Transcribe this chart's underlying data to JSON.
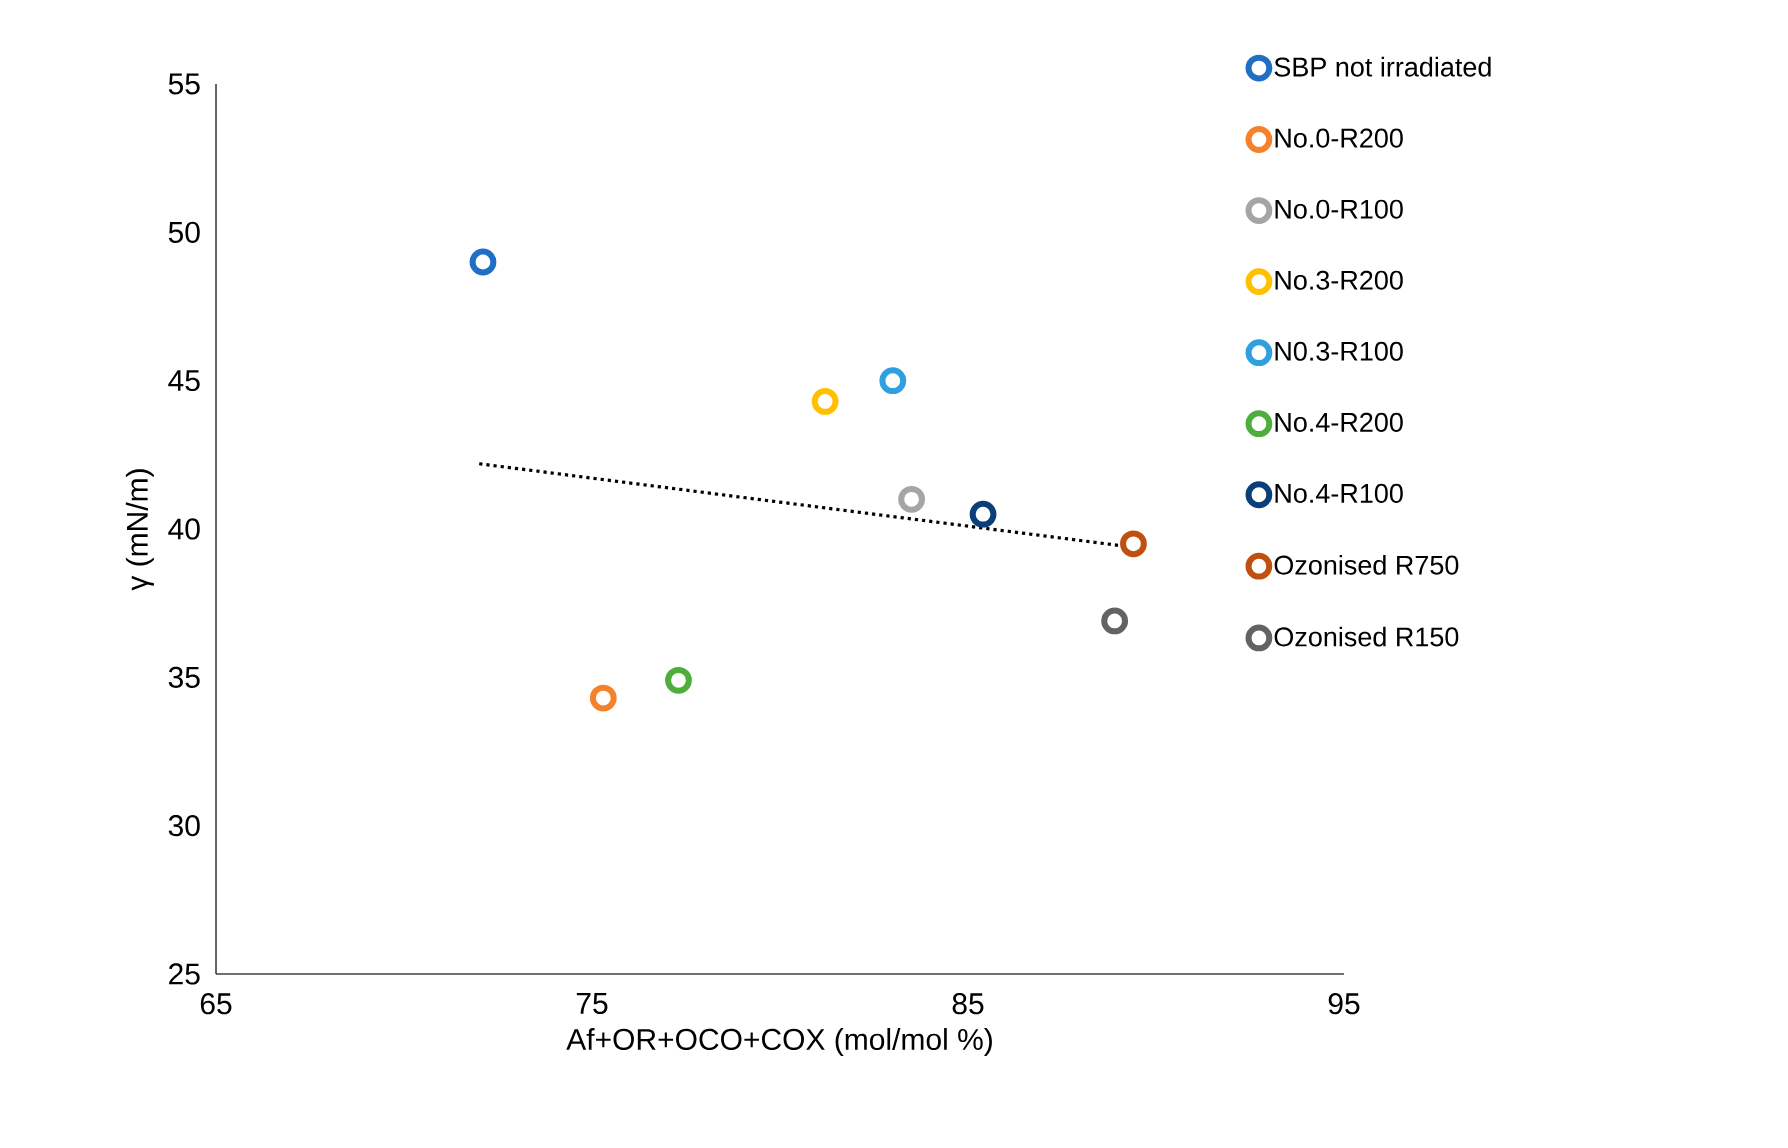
{
  "chart_data": {
    "type": "scatter",
    "xlabel": "Af+OR+OCO+COX  (mol/mol %)",
    "ylabel": "γ (mN/m)",
    "xlim": [
      65,
      95
    ],
    "ylim": [
      25,
      55
    ],
    "xticks": [
      65,
      75,
      85,
      95
    ],
    "yticks": [
      25,
      30,
      35,
      40,
      45,
      50,
      55
    ],
    "marker": "circle",
    "legend": "right",
    "grid": false,
    "series": [
      {
        "name": "SBP not irradiated",
        "color": "#1f6fc5",
        "x": [
          72.1
        ],
        "values": [
          49.0
        ]
      },
      {
        "name": "No.0-R200",
        "color": "#f5822a",
        "x": [
          75.3
        ],
        "values": [
          34.3
        ]
      },
      {
        "name": "No.0-R100",
        "color": "#a5a5a5",
        "x": [
          83.5
        ],
        "values": [
          41.0
        ]
      },
      {
        "name": "No.3-R200",
        "color": "#ffc000",
        "x": [
          81.2
        ],
        "values": [
          44.3
        ]
      },
      {
        "name": "N0.3-R100",
        "color": "#2e9fe0",
        "x": [
          83.0
        ],
        "values": [
          45.0
        ]
      },
      {
        "name": "No.4-R200",
        "color": "#4dae3c",
        "x": [
          77.3
        ],
        "values": [
          34.9
        ]
      },
      {
        "name": "No.4-R100",
        "color": "#0b3f7a",
        "x": [
          85.4
        ],
        "values": [
          40.5
        ]
      },
      {
        "name": "Ozonised R750",
        "color": "#c0500f",
        "x": [
          89.4
        ],
        "values": [
          39.5
        ]
      },
      {
        "name": "Ozonised R150",
        "color": "#636363",
        "x": [
          88.9
        ],
        "values": [
          36.9
        ]
      },
      {
        "type": "line",
        "color": "#000000",
        "line_style": "dotted",
        "marker": "none",
        "x": [
          72.0,
          89.3
        ],
        "values": [
          42.2,
          39.4
        ]
      }
    ]
  }
}
